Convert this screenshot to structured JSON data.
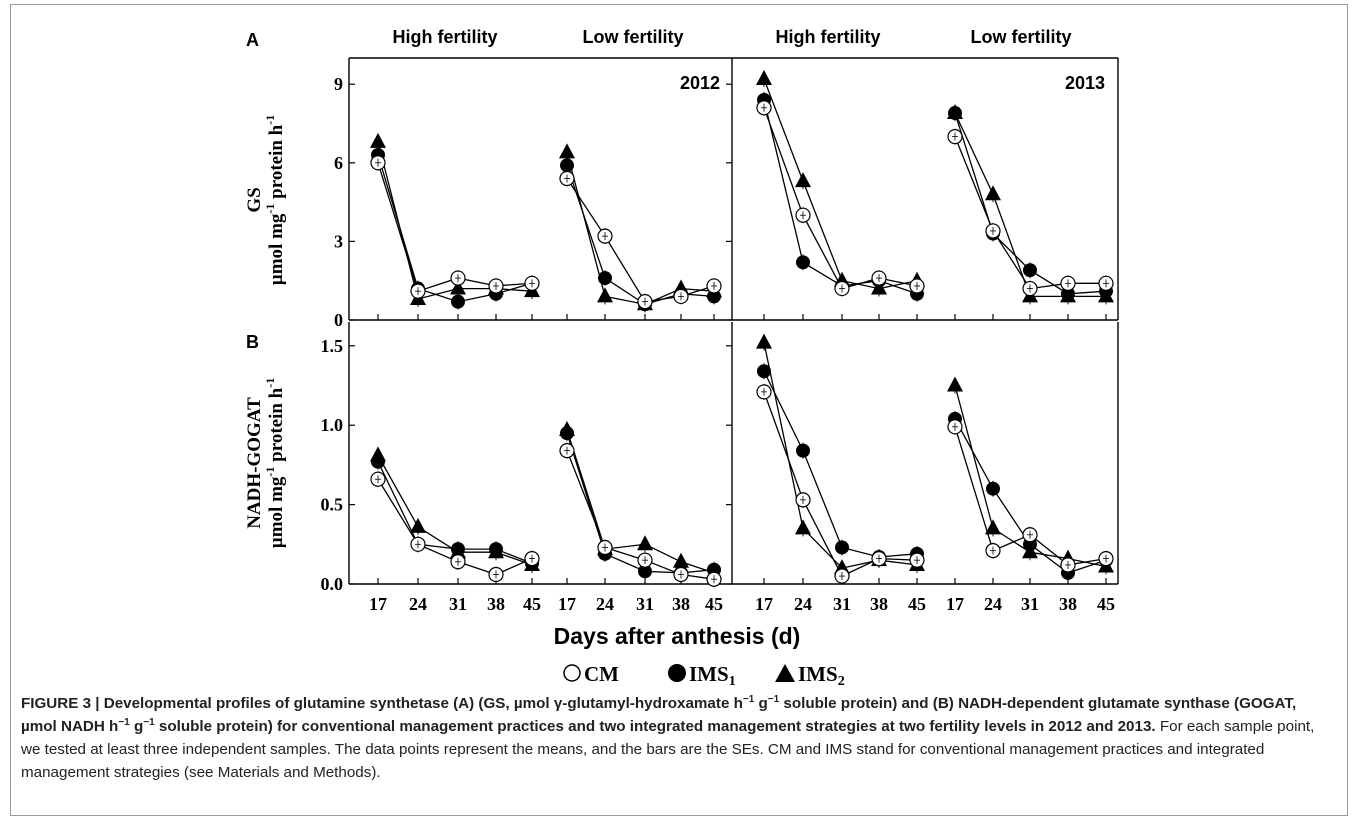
{
  "figure": {
    "panel_labels": [
      "A",
      "B"
    ],
    "column_headers": [
      "High fertility",
      "Low fertility",
      "High fertility",
      "Low fertility"
    ],
    "year_labels": [
      "2012",
      "2013"
    ],
    "xlabel": "Days after anthesis (d)",
    "legend": [
      {
        "marker": "open-circle",
        "label": "CM"
      },
      {
        "marker": "filled-circle",
        "label": "IMS",
        "sub": "1"
      },
      {
        "marker": "filled-triangle",
        "label": "IMS",
        "sub": "2"
      }
    ],
    "ylabel_a": {
      "line1": "GS",
      "line2_pre": "µmol mg",
      "line2_sup1": "-1",
      "line2_mid": " protein h",
      "line2_sup2": "-1"
    },
    "ylabel_b": {
      "line1": "NADH-GOGAT",
      "line2_pre": "µmol mg",
      "line2_sup1": "-1",
      "line2_mid": " protein h",
      "line2_sup2": "-1"
    },
    "caption": {
      "bold_1": "FIGURE 3 | Developmental profiles of glutamine synthetase (A) (GS, µmol γ-glutamyl-hydroxamate h",
      "sup_1": "−1",
      "bold_2": " g",
      "sup_2": "−1",
      "bold_3": " soluble protein) and (B) NADH-dependent glutamate synthase (GOGAT, µmol NADH h",
      "sup_3": "−1",
      "bold_4": " g",
      "sup_4": "−1",
      "bold_5": " soluble protein) for conventional management practices and two integrated management strategies at two fertility levels in 2012 and 2013.",
      "rest": " For each sample point, we tested at least three independent samples. The data points represent the means, and the bars are the SEs. CM and IMS stand for conventional management practices and integrated management strategies (see Materials and Methods)."
    },
    "colors": {
      "marker": "#000000",
      "text": "#000000",
      "caption": "#222222"
    }
  },
  "chart_data": [
    {
      "type": "line",
      "panel": "A",
      "measure": "GS",
      "x": [
        17,
        24,
        31,
        38,
        45
      ],
      "ylim": [
        0,
        10
      ],
      "yticks": [
        0,
        3,
        6,
        9
      ],
      "groups": [
        {
          "year": "2012",
          "fertility": "High fertility",
          "series": [
            {
              "name": "CM",
              "values": [
                6.0,
                1.1,
                1.6,
                1.3,
                1.4
              ]
            },
            {
              "name": "IMS1",
              "values": [
                6.3,
                1.2,
                0.7,
                1.0,
                1.4
              ]
            },
            {
              "name": "IMS2",
              "values": [
                6.8,
                0.8,
                1.2,
                1.2,
                1.1
              ]
            }
          ]
        },
        {
          "year": "2012",
          "fertility": "Low fertility",
          "series": [
            {
              "name": "CM",
              "values": [
                5.4,
                3.2,
                0.7,
                0.9,
                1.3
              ]
            },
            {
              "name": "IMS1",
              "values": [
                5.9,
                1.6,
                0.6,
                1.0,
                0.9
              ]
            },
            {
              "name": "IMS2",
              "values": [
                6.4,
                0.9,
                0.6,
                1.2,
                1.1
              ]
            }
          ]
        },
        {
          "year": "2013",
          "fertility": "High fertility",
          "series": [
            {
              "name": "CM",
              "values": [
                8.1,
                4.0,
                1.2,
                1.6,
                1.3
              ]
            },
            {
              "name": "IMS1",
              "values": [
                8.4,
                2.2,
                1.3,
                1.5,
                1.0
              ]
            },
            {
              "name": "IMS2",
              "values": [
                9.2,
                5.3,
                1.5,
                1.2,
                1.5
              ]
            }
          ]
        },
        {
          "year": "2013",
          "fertility": "Low fertility",
          "series": [
            {
              "name": "CM",
              "values": [
                7.0,
                3.4,
                1.2,
                1.4,
                1.4
              ]
            },
            {
              "name": "IMS1",
              "values": [
                7.9,
                3.3,
                1.9,
                1.0,
                1.1
              ]
            },
            {
              "name": "IMS2",
              "values": [
                7.9,
                4.8,
                0.9,
                0.9,
                0.9
              ]
            }
          ]
        }
      ]
    },
    {
      "type": "line",
      "panel": "B",
      "measure": "NADH-GOGAT",
      "x": [
        17,
        24,
        31,
        38,
        45
      ],
      "ylim": [
        0,
        1.65
      ],
      "yticks": [
        0.0,
        0.5,
        1.0,
        1.5
      ],
      "ytick_labels": [
        "0.0",
        "0.5",
        "1.0",
        "1.5"
      ],
      "groups": [
        {
          "year": "2012",
          "fertility": "High fertility",
          "series": [
            {
              "name": "CM",
              "values": [
                0.66,
                0.25,
                0.14,
                0.06,
                0.16
              ]
            },
            {
              "name": "IMS1",
              "values": [
                0.77,
                0.25,
                0.22,
                0.22,
                0.13
              ]
            },
            {
              "name": "IMS2",
              "values": [
                0.81,
                0.36,
                0.2,
                0.2,
                0.12
              ]
            }
          ]
        },
        {
          "year": "2012",
          "fertility": "Low fertility",
          "series": [
            {
              "name": "CM",
              "values": [
                0.84,
                0.23,
                0.15,
                0.06,
                0.03
              ]
            },
            {
              "name": "IMS1",
              "values": [
                0.95,
                0.19,
                0.08,
                0.07,
                0.09
              ]
            },
            {
              "name": "IMS2",
              "values": [
                0.97,
                0.22,
                0.25,
                0.14,
                0.07
              ]
            }
          ]
        },
        {
          "year": "2013",
          "fertility": "High fertility",
          "series": [
            {
              "name": "CM",
              "values": [
                1.21,
                0.53,
                0.05,
                0.16,
                0.15
              ]
            },
            {
              "name": "IMS1",
              "values": [
                1.34,
                0.84,
                0.23,
                0.17,
                0.19
              ]
            },
            {
              "name": "IMS2",
              "values": [
                1.52,
                0.35,
                0.1,
                0.15,
                0.12
              ]
            }
          ]
        },
        {
          "year": "2013",
          "fertility": "Low fertility",
          "series": [
            {
              "name": "CM",
              "values": [
                0.99,
                0.21,
                0.31,
                0.12,
                0.16
              ]
            },
            {
              "name": "IMS1",
              "values": [
                1.04,
                0.6,
                0.25,
                0.07,
                0.15
              ]
            },
            {
              "name": "IMS2",
              "values": [
                1.25,
                0.35,
                0.2,
                0.16,
                0.11
              ]
            }
          ]
        }
      ]
    }
  ]
}
